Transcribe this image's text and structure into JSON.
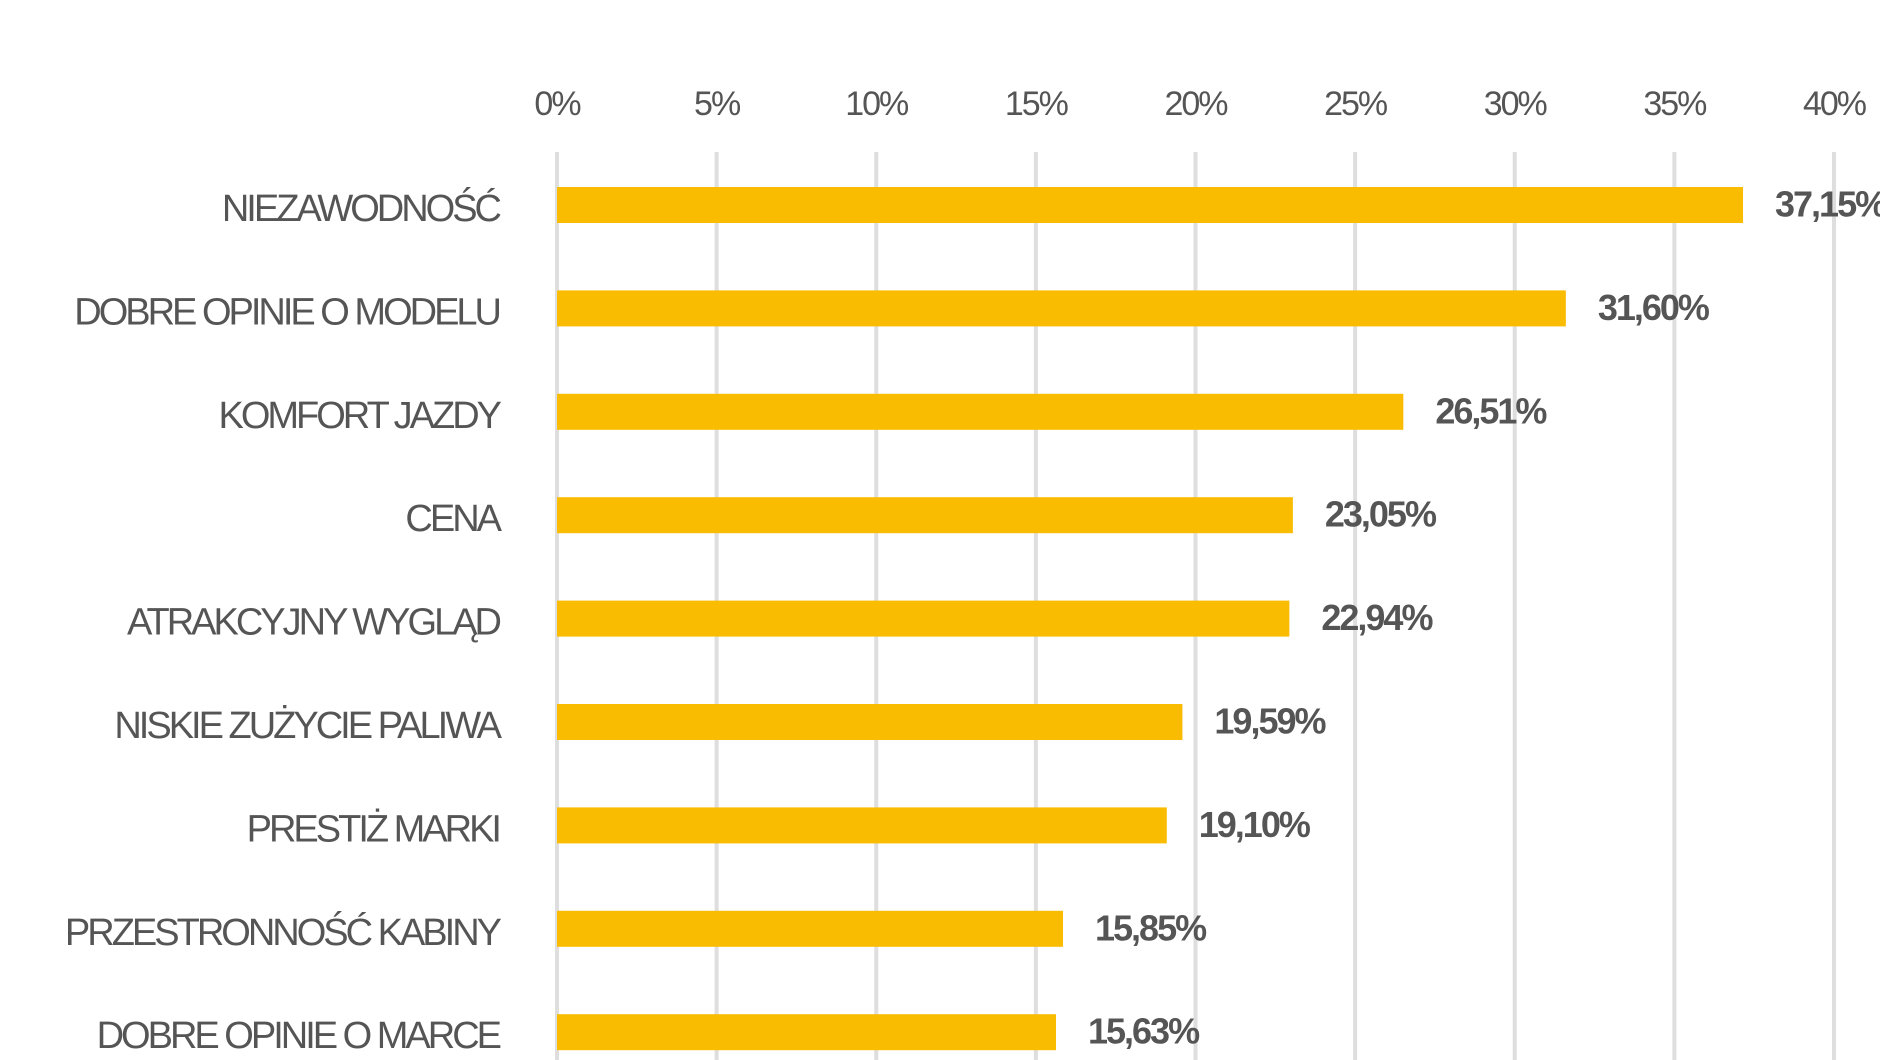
{
  "chart_data": {
    "type": "bar",
    "orientation": "horizontal",
    "categories": [
      "NIEZAWODNOŚĆ",
      "DOBRE OPINIE O MODELU",
      "KOMFORT JAZDY",
      "CENA",
      "ATRAKCYJNY WYGLĄD",
      "NISKIE ZUŻYCIE PALIWA",
      "PRESTIŻ MARKI",
      "PRZESTRONNOŚĆ KABINY",
      "DOBRE OPINIE O MARCE"
    ],
    "values": [
      37.15,
      31.6,
      26.51,
      23.05,
      22.94,
      19.59,
      19.1,
      15.85,
      15.63
    ],
    "value_labels": [
      "37,15%",
      "31,60%",
      "26,51%",
      "23,05%",
      "22,94%",
      "19,59%",
      "19,10%",
      "15,85%",
      "15,63%"
    ],
    "color": "#f9bc00",
    "xlim": [
      0,
      40
    ],
    "xticks": [
      {
        "value": 0,
        "label": "0%"
      },
      {
        "value": 5,
        "label": "5%"
      },
      {
        "value": 10,
        "label": "10%"
      },
      {
        "value": 15,
        "label": "15%"
      },
      {
        "value": 20,
        "label": "20%"
      },
      {
        "value": 25,
        "label": "25%"
      },
      {
        "value": 30,
        "label": "30%"
      },
      {
        "value": 35,
        "label": "35%"
      },
      {
        "value": 40,
        "label": "40%"
      }
    ],
    "grid": true
  }
}
